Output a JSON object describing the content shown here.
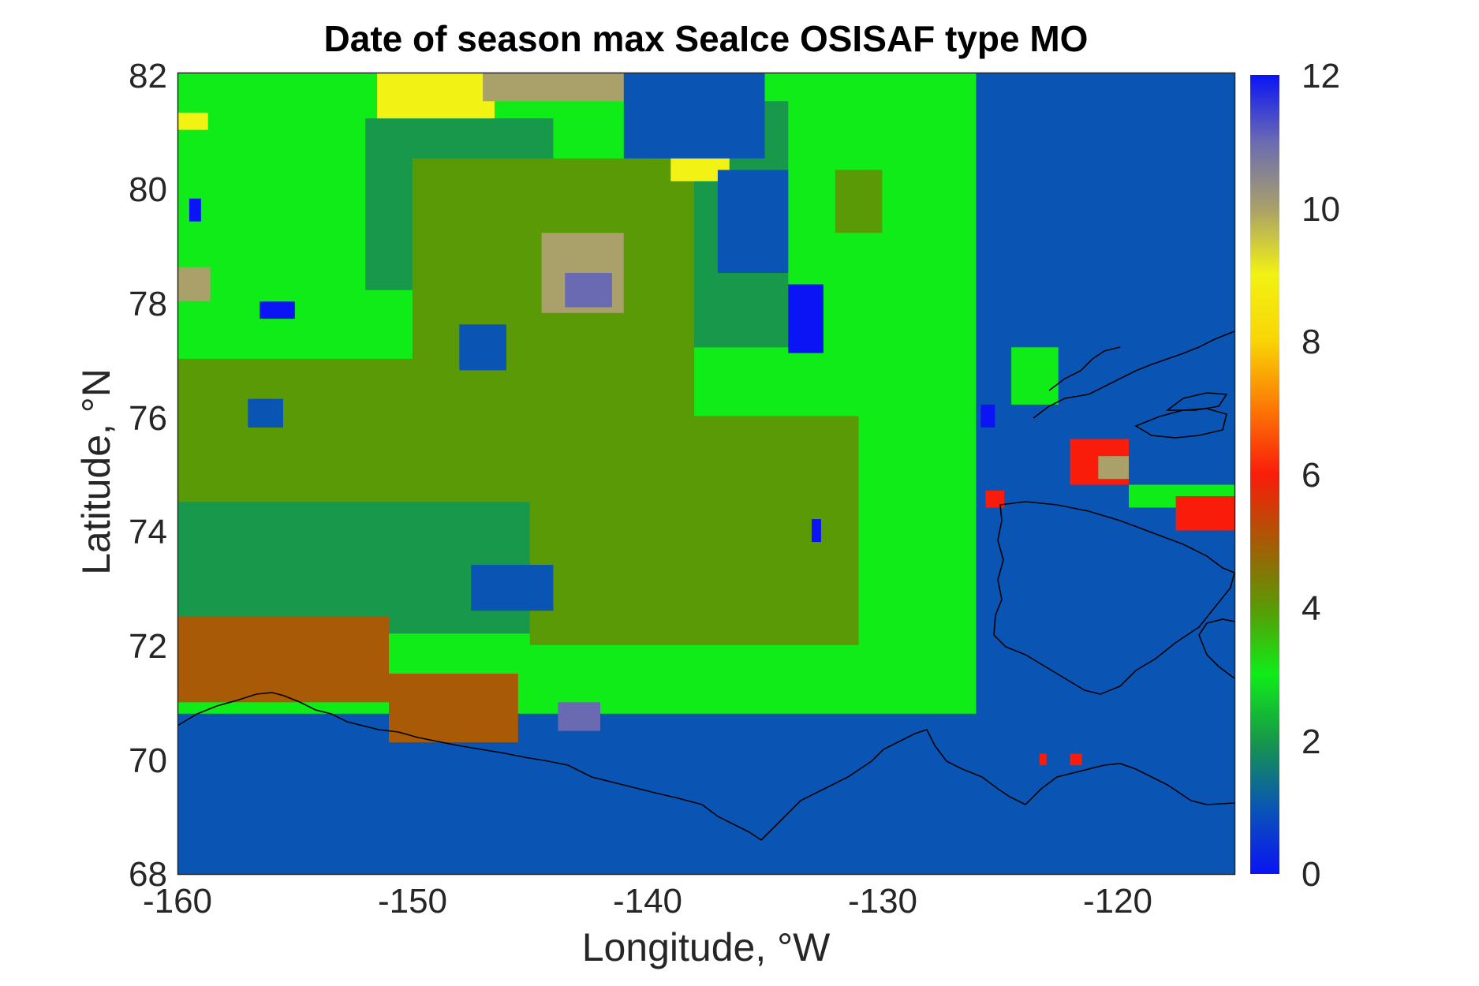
{
  "chart_data": {
    "type": "heatmap",
    "title": "Date of season max SeaIce OSISAF type MO",
    "xlabel": "Longitude, °W",
    "ylabel": "Latitude, °N",
    "xlim": [
      -160,
      -115
    ],
    "ylim": [
      68,
      82
    ],
    "x_ticks": [
      "-160",
      "-150",
      "-140",
      "-130",
      "-120"
    ],
    "x_tick_values": [
      -160,
      -150,
      -140,
      -130,
      -120
    ],
    "y_ticks": [
      "68",
      "70",
      "72",
      "74",
      "76",
      "78",
      "80",
      "82"
    ],
    "y_tick_values": [
      68,
      70,
      72,
      74,
      76,
      78,
      80,
      82
    ],
    "colorbar": {
      "range": [
        0,
        12
      ],
      "ticks": [
        "0",
        "2",
        "4",
        "6",
        "8",
        "10",
        "12"
      ],
      "tick_values": [
        0,
        2,
        4,
        6,
        8,
        10,
        12
      ]
    },
    "regions": [
      {
        "value": 1,
        "lon": [
          -160,
          -115
        ],
        "lat": [
          68,
          82
        ]
      },
      {
        "value": 3,
        "lon": [
          -160,
          -126
        ],
        "lat": [
          70.8,
          82
        ]
      },
      {
        "value": 2,
        "lon": [
          -160,
          -140
        ],
        "lat": [
          72.2,
          74.8
        ]
      },
      {
        "value": 2,
        "lon": [
          -152,
          -144
        ],
        "lat": [
          78.2,
          81.2
        ]
      },
      {
        "value": 2,
        "lon": [
          -140,
          -134
        ],
        "lat": [
          77.2,
          81.5
        ]
      },
      {
        "value": 4,
        "lon": [
          -160,
          -142
        ],
        "lat": [
          74.5,
          77.0
        ]
      },
      {
        "value": 4,
        "lon": [
          -150,
          -138
        ],
        "lat": [
          76.0,
          80.5
        ]
      },
      {
        "value": 4,
        "lon": [
          -145,
          -131
        ],
        "lat": [
          72.0,
          76.0
        ]
      },
      {
        "value": 4,
        "lon": [
          -132,
          -130
        ],
        "lat": [
          79.2,
          80.3
        ]
      },
      {
        "value": 5,
        "lon": [
          -160,
          -151
        ],
        "lat": [
          71.0,
          72.5
        ]
      },
      {
        "value": 5,
        "lon": [
          -151,
          -145.5
        ],
        "lat": [
          70.3,
          71.5
        ]
      },
      {
        "value": 9,
        "lon": [
          -151.5,
          -146.5
        ],
        "lat": [
          81.2,
          82
        ]
      },
      {
        "value": 9,
        "lon": [
          -160,
          -158.7
        ],
        "lat": [
          81.0,
          81.3
        ]
      },
      {
        "value": 9,
        "lon": [
          -139,
          -136.5
        ],
        "lat": [
          80.1,
          80.7
        ]
      },
      {
        "value": 10,
        "lon": [
          -147,
          -140.5
        ],
        "lat": [
          81.5,
          82
        ]
      },
      {
        "value": 10,
        "lon": [
          -144.5,
          -141
        ],
        "lat": [
          77.8,
          79.2
        ]
      },
      {
        "value": 10,
        "lon": [
          -160,
          -158.6
        ],
        "lat": [
          78.0,
          78.6
        ]
      },
      {
        "value": 11,
        "lon": [
          -143.5,
          -141.5
        ],
        "lat": [
          77.9,
          78.5
        ]
      },
      {
        "value": 11,
        "lon": [
          -143.8,
          -142
        ],
        "lat": [
          70.5,
          71.0
        ]
      },
      {
        "value": 1,
        "lon": [
          -141,
          -135
        ],
        "lat": [
          80.5,
          82
        ]
      },
      {
        "value": 1,
        "lon": [
          -137,
          -134
        ],
        "lat": [
          78.5,
          80.3
        ]
      },
      {
        "value": 1,
        "lon": [
          -147.5,
          -144
        ],
        "lat": [
          72.6,
          73.4
        ]
      },
      {
        "value": 1,
        "lon": [
          -148,
          -146
        ],
        "lat": [
          76.8,
          77.6
        ]
      },
      {
        "value": 1,
        "lon": [
          -157,
          -155.5
        ],
        "lat": [
          75.8,
          76.3
        ]
      },
      {
        "value": 0,
        "lon": [
          -134,
          -132.5
        ],
        "lat": [
          77.1,
          78.3
        ]
      },
      {
        "value": 0,
        "lon": [
          -156.5,
          -155
        ],
        "lat": [
          77.7,
          78.0
        ]
      },
      {
        "value": 0,
        "lon": [
          -159.5,
          -159
        ],
        "lat": [
          79.4,
          79.8
        ]
      },
      {
        "value": 0,
        "lon": [
          -125.8,
          -125.2
        ],
        "lat": [
          75.8,
          76.2
        ]
      },
      {
        "value": 0,
        "lon": [
          -133,
          -132.6
        ],
        "lat": [
          73.8,
          74.2
        ]
      },
      {
        "value": 3,
        "lon": [
          -124.5,
          -122.5
        ],
        "lat": [
          76.2,
          77.2
        ]
      },
      {
        "value": 6,
        "lon": [
          -125.6,
          -124.8
        ],
        "lat": [
          74.4,
          74.7
        ]
      },
      {
        "value": 1,
        "lon": [
          -123.5,
          -121.8
        ],
        "lat": [
          75.0,
          75.8
        ]
      },
      {
        "value": 6,
        "lon": [
          -122,
          -119.5
        ],
        "lat": [
          74.8,
          75.6
        ]
      },
      {
        "value": 10,
        "lon": [
          -120.8,
          -119.5
        ],
        "lat": [
          74.9,
          75.3
        ]
      },
      {
        "value": 3,
        "lon": [
          -119.5,
          -115
        ],
        "lat": [
          74.4,
          74.8
        ]
      },
      {
        "value": 6,
        "lon": [
          -117.5,
          -115
        ],
        "lat": [
          74.0,
          74.6
        ]
      },
      {
        "value": 6,
        "lon": [
          -122,
          -121.5
        ],
        "lat": [
          69.9,
          70.1
        ]
      },
      {
        "value": 6,
        "lon": [
          -123.3,
          -123
        ],
        "lat": [
          69.9,
          70.1
        ]
      }
    ]
  }
}
